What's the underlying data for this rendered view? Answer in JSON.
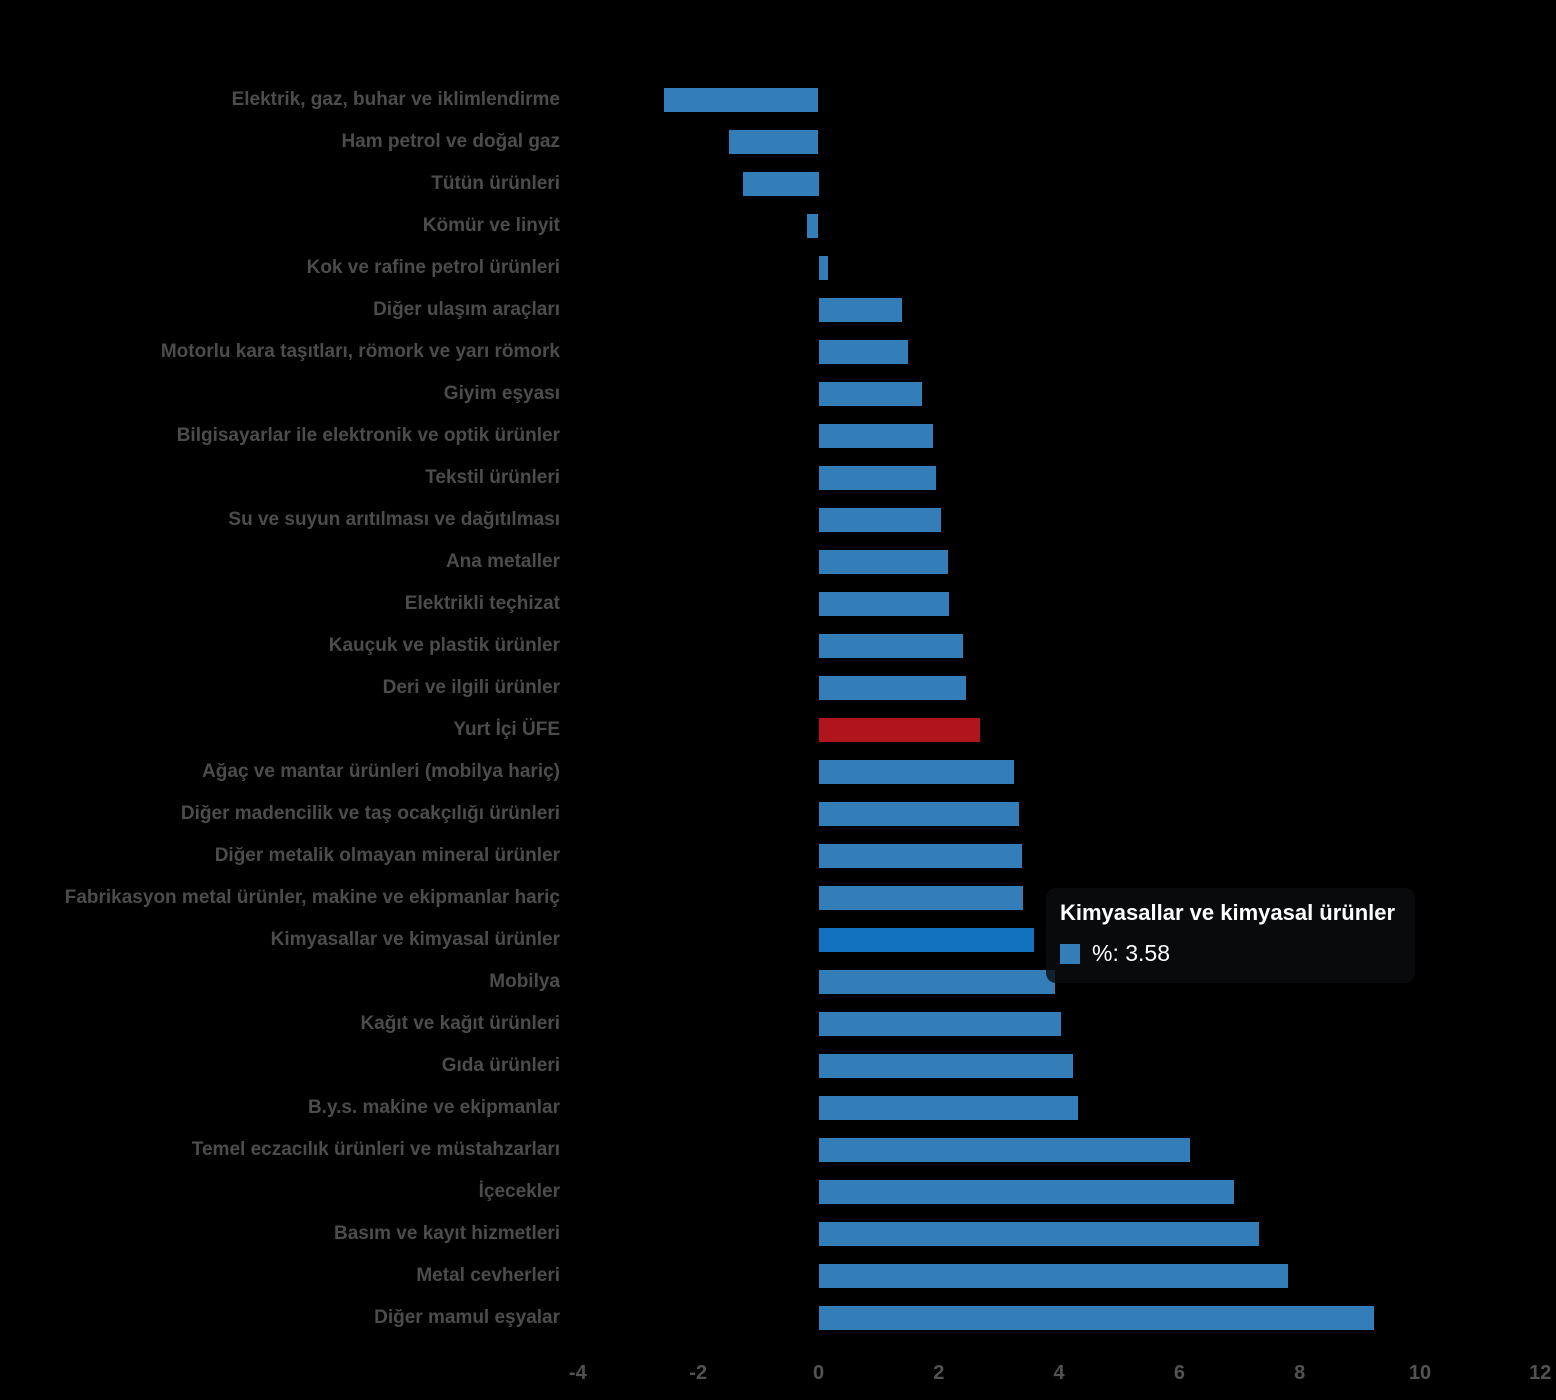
{
  "background_color": "#000000",
  "chart_data": {
    "type": "bar",
    "orientation": "horizontal",
    "title": "",
    "xlabel": "",
    "ylabel": "",
    "value_unit": "%",
    "xlim": [
      -4,
      12
    ],
    "x_ticks": [
      -4,
      -2,
      0,
      2,
      4,
      6,
      8,
      10,
      12
    ],
    "x_tick_labels": [
      "-4",
      "-2",
      "0",
      "2",
      "4",
      "6",
      "8",
      "10",
      "12"
    ],
    "grid": false,
    "legend": false,
    "categories": [
      "Elektrik, gaz, buhar ve iklimlendirme",
      "Ham petrol ve doğal gaz",
      "Tütün ürünleri",
      "Kömür ve linyit",
      "Kok ve rafine petrol ürünleri",
      "Diğer ulaşım araçları",
      "Motorlu kara taşıtları, römork ve yarı römork",
      "Giyim eşyası",
      "Bilgisayarlar ile elektronik ve optik ürünler",
      "Tekstil ürünleri",
      "Su ve suyun arıtılması ve dağıtılması",
      "Ana metaller",
      "Elektrikli teçhizat",
      "Kauçuk ve plastik ürünler",
      "Deri ve ilgili ürünler",
      "Yurt İçi ÜFE",
      "Ağaç ve mantar ürünleri (mobilya hariç)",
      "Diğer madencilik ve taş ocakçılığı ürünleri",
      "Diğer metalik olmayan mineral ürünler",
      "Fabrikasyon metal ürünler, makine ve ekipmanlar hariç",
      "Kimyasallar ve kimyasal ürünler",
      "Mobilya",
      "Kağıt ve kağıt ürünleri",
      "Gıda ürünleri",
      "B.y.s. makine ve ekipmanlar",
      "Temel eczacılık ürünleri ve müstahzarları",
      "İçecekler",
      "Basım ve kayıt hizmetleri",
      "Metal cevherleri",
      "Diğer mamul eşyalar"
    ],
    "values": [
      -2.57,
      -1.48,
      -1.25,
      -0.19,
      0.16,
      1.39,
      1.49,
      1.72,
      1.9,
      1.95,
      2.04,
      2.16,
      2.17,
      2.41,
      2.46,
      2.68,
      3.25,
      3.34,
      3.38,
      3.4,
      3.58,
      3.93,
      4.03,
      4.23,
      4.31,
      6.18,
      6.91,
      7.32,
      7.8,
      9.23
    ],
    "colors": {
      "default": "#337EB8",
      "reference": "#B0151B",
      "hover": "#1272BF"
    },
    "reference_category": "Yurt İçi ÜFE",
    "hovered_category": "Kimyasallar ve kimyasal ürünler",
    "label_color": "#4C4C4C",
    "tick_color": "#525252"
  },
  "tooltip": {
    "title": "Kimyasallar ve kimyasal ürünler",
    "swatch_color": "#337EB8",
    "value_label": "%: 3.58",
    "value": 3.58
  }
}
